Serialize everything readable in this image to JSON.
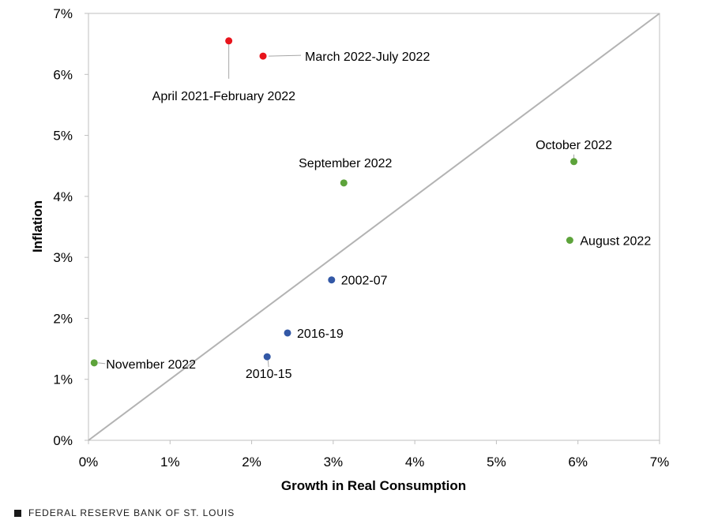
{
  "chart_data": {
    "type": "scatter",
    "xlabel": "Growth in Real Consumption",
    "ylabel": "Inflation",
    "xlim": [
      0,
      7
    ],
    "ylim": [
      0,
      7
    ],
    "x_ticks": [
      "0%",
      "1%",
      "2%",
      "3%",
      "4%",
      "5%",
      "6%",
      "7%"
    ],
    "y_ticks": [
      "0%",
      "1%",
      "2%",
      "3%",
      "4%",
      "5%",
      "6%",
      "7%"
    ],
    "reference_line": {
      "from": [
        0,
        0
      ],
      "to": [
        7,
        7
      ],
      "color": "#b3b3b3"
    },
    "grid": false,
    "points": [
      {
        "label": "April 2021-February 2022",
        "x": 1.72,
        "y": 6.55,
        "color": "#e8141c"
      },
      {
        "label": "March 2022-July 2022",
        "x": 2.14,
        "y": 6.3,
        "color": "#e8141c"
      },
      {
        "label": "September 2022",
        "x": 3.13,
        "y": 4.22,
        "color": "#5da33b"
      },
      {
        "label": "October 2022",
        "x": 5.95,
        "y": 4.57,
        "color": "#5da33b"
      },
      {
        "label": "August 2022",
        "x": 5.9,
        "y": 3.28,
        "color": "#5da33b"
      },
      {
        "label": "November 2022",
        "x": 0.07,
        "y": 1.27,
        "color": "#5da33b"
      },
      {
        "label": "2002-07",
        "x": 2.98,
        "y": 2.63,
        "color": "#3358a6"
      },
      {
        "label": "2016-19",
        "x": 2.44,
        "y": 1.76,
        "color": "#3358a6"
      },
      {
        "label": "2010-15",
        "x": 2.19,
        "y": 1.37,
        "color": "#3358a6"
      }
    ]
  },
  "footer": {
    "source": "FEDERAL RESERVE BANK OF ST. LOUIS"
  }
}
